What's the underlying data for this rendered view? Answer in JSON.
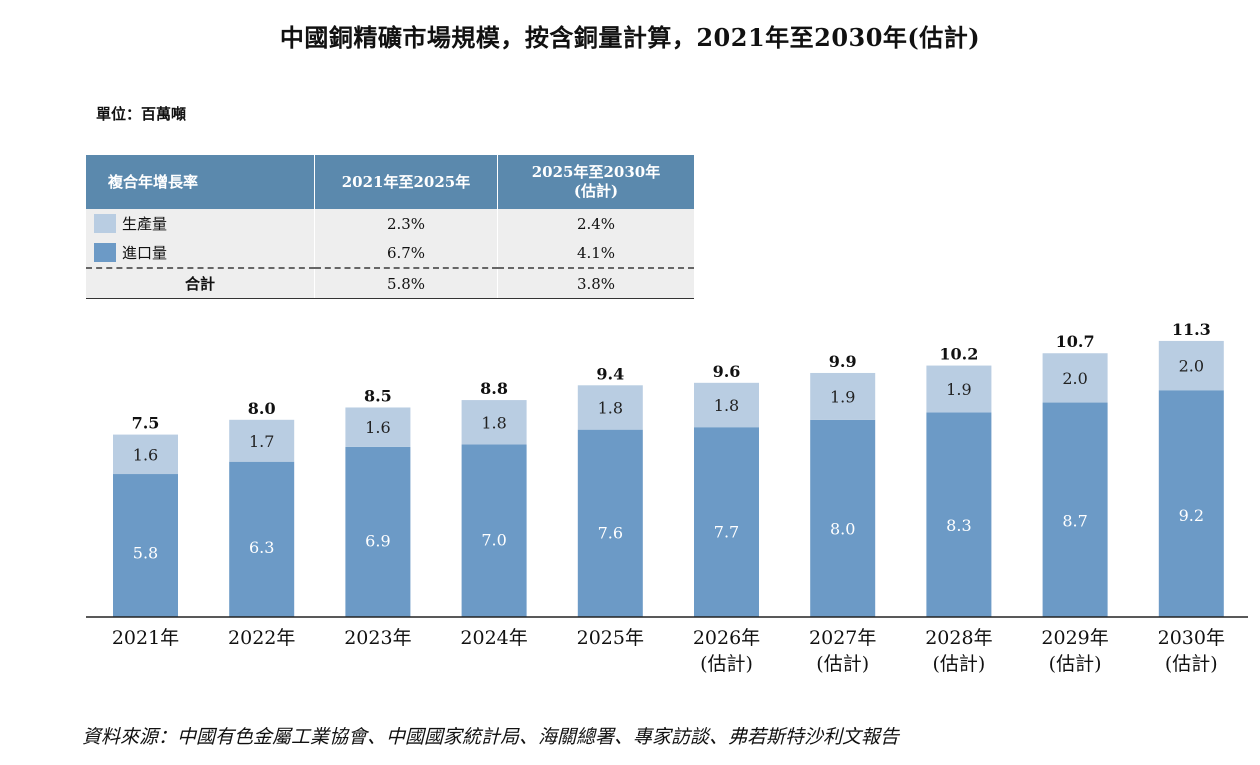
{
  "title": "中國銅精礦市場規模，按含銅量計算，2021年至2030年(估計)",
  "unit": "單位：百萬噸",
  "colors": {
    "production": "#b9cde2",
    "import": "#6c9ac6",
    "header": "#5b89ad"
  },
  "cagr_table": {
    "header": [
      "複合年增長率",
      "2021年至2025年",
      "2025年至2030年",
      "(估計)"
    ],
    "rows": [
      {
        "label": "生產量",
        "v1": "2.3%",
        "v2": "2.4%"
      },
      {
        "label": "進口量",
        "v1": "6.7%",
        "v2": "4.1%"
      }
    ],
    "total": {
      "label": "合計",
      "v1": "5.8%",
      "v2": "3.8%"
    }
  },
  "chart_data": {
    "type": "bar",
    "stacked": true,
    "categories": [
      "2021年",
      "2022年",
      "2023年",
      "2024年",
      "2025年",
      "2026年",
      "2027年",
      "2028年",
      "2029年",
      "2030年"
    ],
    "category_sublabels": [
      "",
      "",
      "",
      "",
      "",
      "(估計)",
      "(估計)",
      "(估計)",
      "(估計)",
      "(估計)"
    ],
    "series": [
      {
        "name": "進口量",
        "values": [
          5.8,
          6.3,
          6.9,
          7.0,
          7.6,
          7.7,
          8.0,
          8.3,
          8.7,
          9.2
        ]
      },
      {
        "name": "生產量",
        "values": [
          1.6,
          1.7,
          1.6,
          1.8,
          1.8,
          1.8,
          1.9,
          1.9,
          2.0,
          2.0
        ]
      }
    ],
    "series_labels": [
      [
        "5.8",
        "6.3",
        "6.9",
        "7.0",
        "7.6",
        "7.7",
        "8.0",
        "8.3",
        "8.7",
        "9.2"
      ],
      [
        "1.6",
        "1.7",
        "1.6",
        "1.8",
        "1.8",
        "1.8",
        "1.9",
        "1.9",
        "2.0",
        "2.0"
      ]
    ],
    "totals": [
      "7.5",
      "8.0",
      "8.5",
      "8.8",
      "9.4",
      "9.6",
      "9.9",
      "10.2",
      "10.7",
      "11.3"
    ],
    "ylim": [
      0,
      11.3
    ],
    "grid": false,
    "legend": "table-top-left"
  },
  "source": "資料來源：中國有色金屬工業協會、中國國家統計局、海關總署、專家訪談、弗若斯特沙利文報告"
}
